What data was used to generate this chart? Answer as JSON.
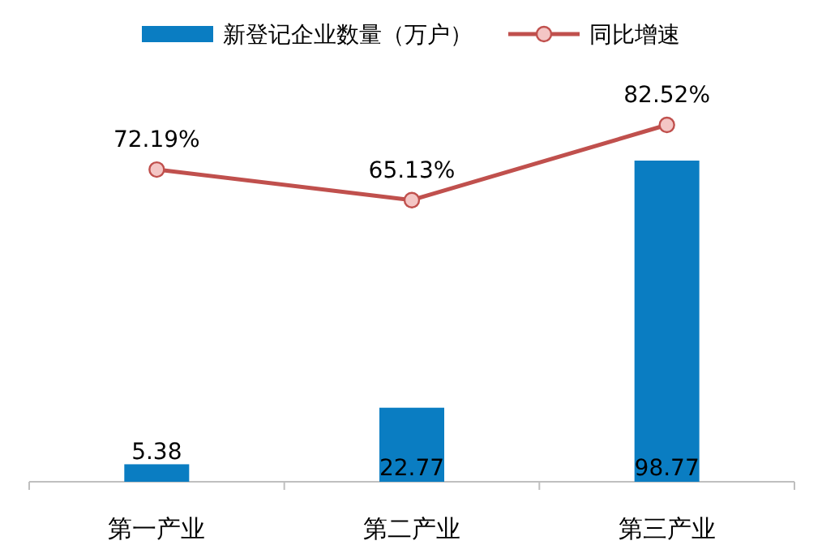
{
  "chart_data": {
    "type": "bar",
    "categories": [
      "第一产业",
      "第二产业",
      "第三产业"
    ],
    "series": [
      {
        "name": "新登记企业数量（万户）",
        "color": "#0a7dc2",
        "values": [
          5.38,
          22.77,
          98.77
        ]
      },
      {
        "name": "同比增速",
        "type": "line",
        "axis": "y2",
        "color": "#c0504d",
        "values": [
          72.19,
          65.13,
          82.52
        ],
        "value_labels": [
          "72.19%",
          "65.13%",
          "82.52%"
        ]
      }
    ],
    "data_labels": true,
    "legend": "top",
    "marker": "circle",
    "line_style": "solid",
    "grid": false,
    "tick_labels": "x"
  }
}
